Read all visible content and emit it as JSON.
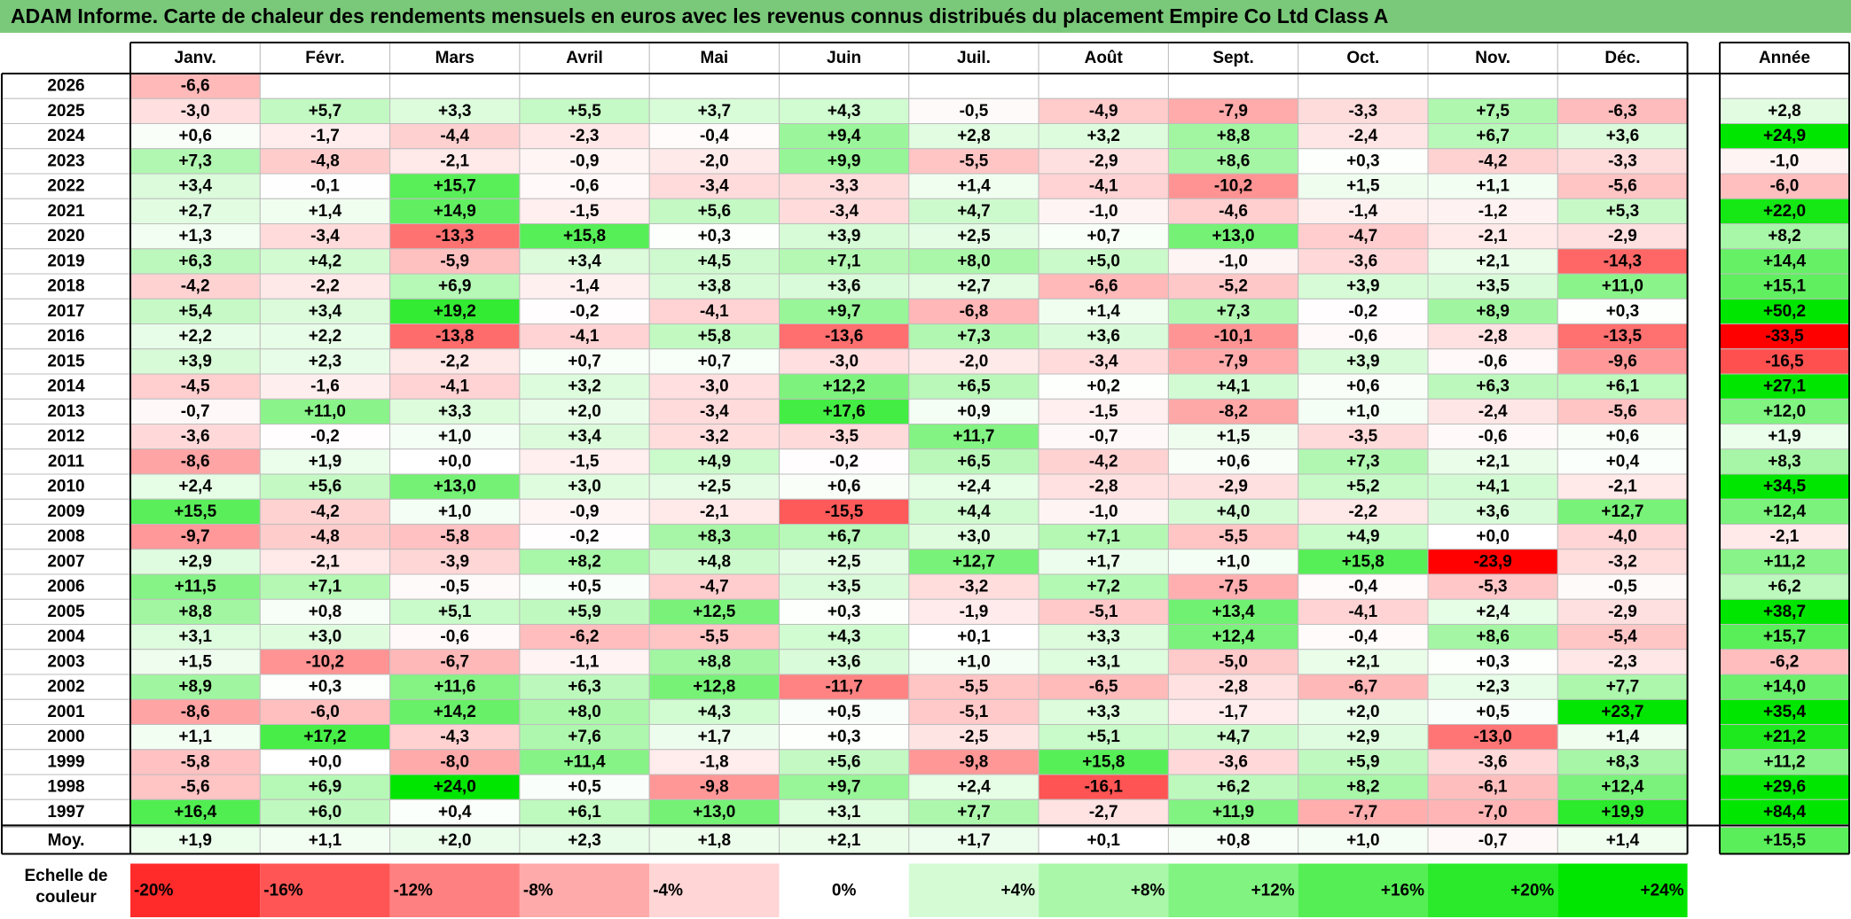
{
  "title": "ADAM Informe. Carte de chaleur des rendements mensuels en euros avec les revenus connus distribués du placement Empire Co Ltd Class A",
  "colors": {
    "title_bar": "#7ac97a",
    "negative_max": "#ff0000",
    "neutral": "#ffffff",
    "positive_max": "#00e600"
  },
  "chart_data": {
    "type": "heatmap",
    "title": "ADAM Informe. Carte de chaleur des rendements mensuels en euros avec les revenus connus distribués du placement Empire Co Ltd Class A",
    "months": [
      "Janv.",
      "Févr.",
      "Mars",
      "Avril",
      "Mai",
      "Juin",
      "Juil.",
      "Août",
      "Sept.",
      "Oct.",
      "Nov.",
      "Déc."
    ],
    "year_header": "Année",
    "rows": [
      {
        "year": "2026",
        "values": [
          "-6,6",
          "",
          "",
          "",
          "",
          "",
          "",
          "",
          "",
          "",
          "",
          ""
        ],
        "annual": ""
      },
      {
        "year": "2025",
        "values": [
          "-3,0",
          "+5,7",
          "+3,3",
          "+5,5",
          "+3,7",
          "+4,3",
          "-0,5",
          "-4,9",
          "-7,9",
          "-3,3",
          "+7,5",
          "-6,3"
        ],
        "annual": "+2,8"
      },
      {
        "year": "2024",
        "values": [
          "+0,6",
          "-1,7",
          "-4,4",
          "-2,3",
          "-0,4",
          "+9,4",
          "+2,8",
          "+3,2",
          "+8,8",
          "-2,4",
          "+6,7",
          "+3,6"
        ],
        "annual": "+24,9"
      },
      {
        "year": "2023",
        "values": [
          "+7,3",
          "-4,8",
          "-2,1",
          "-0,9",
          "-2,0",
          "+9,9",
          "-5,5",
          "-2,9",
          "+8,6",
          "+0,3",
          "-4,2",
          "-3,3"
        ],
        "annual": "-1,0"
      },
      {
        "year": "2022",
        "values": [
          "+3,4",
          "-0,1",
          "+15,7",
          "-0,6",
          "-3,4",
          "-3,3",
          "+1,4",
          "-4,1",
          "-10,2",
          "+1,5",
          "+1,1",
          "-5,6"
        ],
        "annual": "-6,0"
      },
      {
        "year": "2021",
        "values": [
          "+2,7",
          "+1,4",
          "+14,9",
          "-1,5",
          "+5,6",
          "-3,4",
          "+4,7",
          "-1,0",
          "-4,6",
          "-1,4",
          "-1,2",
          "+5,3"
        ],
        "annual": "+22,0"
      },
      {
        "year": "2020",
        "values": [
          "+1,3",
          "-3,4",
          "-13,3",
          "+15,8",
          "+0,3",
          "+3,9",
          "+2,5",
          "+0,7",
          "+13,0",
          "-4,7",
          "-2,1",
          "-2,9"
        ],
        "annual": "+8,2"
      },
      {
        "year": "2019",
        "values": [
          "+6,3",
          "+4,2",
          "-5,9",
          "+3,4",
          "+4,5",
          "+7,1",
          "+8,0",
          "+5,0",
          "-1,0",
          "-3,6",
          "+2,1",
          "-14,3"
        ],
        "annual": "+14,4"
      },
      {
        "year": "2018",
        "values": [
          "-4,2",
          "-2,2",
          "+6,9",
          "-1,4",
          "+3,8",
          "+3,6",
          "+2,7",
          "-6,6",
          "-5,2",
          "+3,9",
          "+3,5",
          "+11,0"
        ],
        "annual": "+15,1"
      },
      {
        "year": "2017",
        "values": [
          "+5,4",
          "+3,4",
          "+19,2",
          "-0,2",
          "-4,1",
          "+9,7",
          "-6,8",
          "+1,4",
          "+7,3",
          "-0,2",
          "+8,9",
          "+0,3"
        ],
        "annual": "+50,2"
      },
      {
        "year": "2016",
        "values": [
          "+2,2",
          "+2,2",
          "-13,8",
          "-4,1",
          "+5,8",
          "-13,6",
          "+7,3",
          "+3,6",
          "-10,1",
          "-0,6",
          "-2,8",
          "-13,5"
        ],
        "annual": "-33,5"
      },
      {
        "year": "2015",
        "values": [
          "+3,9",
          "+2,3",
          "-2,2",
          "+0,7",
          "+0,7",
          "-3,0",
          "-2,0",
          "-3,4",
          "-7,9",
          "+3,9",
          "-0,6",
          "-9,6"
        ],
        "annual": "-16,5"
      },
      {
        "year": "2014",
        "values": [
          "-4,5",
          "-1,6",
          "-4,1",
          "+3,2",
          "-3,0",
          "+12,2",
          "+6,5",
          "+0,2",
          "+4,1",
          "+0,6",
          "+6,3",
          "+6,1"
        ],
        "annual": "+27,1"
      },
      {
        "year": "2013",
        "values": [
          "-0,7",
          "+11,0",
          "+3,3",
          "+2,0",
          "-3,4",
          "+17,6",
          "+0,9",
          "-1,5",
          "-8,2",
          "+1,0",
          "-2,4",
          "-5,6"
        ],
        "annual": "+12,0"
      },
      {
        "year": "2012",
        "values": [
          "-3,6",
          "-0,2",
          "+1,0",
          "+3,4",
          "-3,2",
          "-3,5",
          "+11,7",
          "-0,7",
          "+1,5",
          "-3,5",
          "-0,6",
          "+0,6"
        ],
        "annual": "+1,9"
      },
      {
        "year": "2011",
        "values": [
          "-8,6",
          "+1,9",
          "+0,0",
          "-1,5",
          "+4,9",
          "-0,2",
          "+6,5",
          "-4,2",
          "+0,6",
          "+7,3",
          "+2,1",
          "+0,4"
        ],
        "annual": "+8,3"
      },
      {
        "year": "2010",
        "values": [
          "+2,4",
          "+5,6",
          "+13,0",
          "+3,0",
          "+2,5",
          "+0,6",
          "+2,4",
          "-2,8",
          "-2,9",
          "+5,2",
          "+4,1",
          "-2,1"
        ],
        "annual": "+34,5"
      },
      {
        "year": "2009",
        "values": [
          "+15,5",
          "-4,2",
          "+1,0",
          "-0,9",
          "-2,1",
          "-15,5",
          "+4,4",
          "-1,0",
          "+4,0",
          "-2,2",
          "+3,6",
          "+12,7"
        ],
        "annual": "+12,4"
      },
      {
        "year": "2008",
        "values": [
          "-9,7",
          "-4,8",
          "-5,8",
          "-0,2",
          "+8,3",
          "+6,7",
          "+3,0",
          "+7,1",
          "-5,5",
          "+4,9",
          "+0,0",
          "-4,0"
        ],
        "annual": "-2,1"
      },
      {
        "year": "2007",
        "values": [
          "+2,9",
          "-2,1",
          "-3,9",
          "+8,2",
          "+4,8",
          "+2,5",
          "+12,7",
          "+1,7",
          "+1,0",
          "+15,8",
          "-23,9",
          "-3,2"
        ],
        "annual": "+11,2"
      },
      {
        "year": "2006",
        "values": [
          "+11,5",
          "+7,1",
          "-0,5",
          "+0,5",
          "-4,7",
          "+3,5",
          "-3,2",
          "+7,2",
          "-7,5",
          "-0,4",
          "-5,3",
          "-0,5"
        ],
        "annual": "+6,2"
      },
      {
        "year": "2005",
        "values": [
          "+8,8",
          "+0,8",
          "+5,1",
          "+5,9",
          "+12,5",
          "+0,3",
          "-1,9",
          "-5,1",
          "+13,4",
          "-4,1",
          "+2,4",
          "-2,9"
        ],
        "annual": "+38,7"
      },
      {
        "year": "2004",
        "values": [
          "+3,1",
          "+3,0",
          "-0,6",
          "-6,2",
          "-5,5",
          "+4,3",
          "+0,1",
          "+3,3",
          "+12,4",
          "-0,4",
          "+8,6",
          "-5,4"
        ],
        "annual": "+15,7"
      },
      {
        "year": "2003",
        "values": [
          "+1,5",
          "-10,2",
          "-6,7",
          "-1,1",
          "+8,8",
          "+3,6",
          "+1,0",
          "+3,1",
          "-5,0",
          "+2,1",
          "+0,3",
          "-2,3"
        ],
        "annual": "-6,2"
      },
      {
        "year": "2002",
        "values": [
          "+8,9",
          "+0,3",
          "+11,6",
          "+6,3",
          "+12,8",
          "-11,7",
          "-5,5",
          "-6,5",
          "-2,8",
          "-6,7",
          "+2,3",
          "+7,7"
        ],
        "annual": "+14,0"
      },
      {
        "year": "2001",
        "values": [
          "-8,6",
          "-6,0",
          "+14,2",
          "+8,0",
          "+4,3",
          "+0,5",
          "-5,1",
          "+3,3",
          "-1,7",
          "+2,0",
          "+0,5",
          "+23,7"
        ],
        "annual": "+35,4"
      },
      {
        "year": "2000",
        "values": [
          "+1,1",
          "+17,2",
          "-4,3",
          "+7,6",
          "+1,7",
          "+0,3",
          "-2,5",
          "+5,1",
          "+4,7",
          "+2,9",
          "-13,0",
          "+1,4"
        ],
        "annual": "+21,2"
      },
      {
        "year": "1999",
        "values": [
          "-5,8",
          "+0,0",
          "-8,0",
          "+11,4",
          "-1,8",
          "+5,6",
          "-9,8",
          "+15,8",
          "-3,6",
          "+5,9",
          "-3,6",
          "+8,3"
        ],
        "annual": "+11,2"
      },
      {
        "year": "1998",
        "values": [
          "-5,6",
          "+6,9",
          "+24,0",
          "+0,5",
          "-9,8",
          "+9,7",
          "+2,4",
          "-16,1",
          "+6,2",
          "+8,2",
          "-6,1",
          "+12,4"
        ],
        "annual": "+29,6"
      },
      {
        "year": "1997",
        "values": [
          "+16,4",
          "+6,0",
          "+0,4",
          "+6,1",
          "+13,0",
          "+3,1",
          "+7,7",
          "-2,7",
          "+11,9",
          "-7,7",
          "-7,0",
          "+19,9"
        ],
        "annual": "+84,4"
      }
    ],
    "average_row": {
      "label": "Moy.",
      "values": [
        "+1,9",
        "+1,1",
        "+2,0",
        "+2,3",
        "+1,8",
        "+2,1",
        "+1,7",
        "+0,1",
        "+0,8",
        "+1,0",
        "-0,7",
        "+1,4"
      ],
      "annual": "+15,5"
    },
    "color_scale": {
      "label_line1": "Echelle de",
      "label_line2": "couleur",
      "stops": [
        "-20%",
        "-16%",
        "-12%",
        "-8%",
        "-4%",
        "0%",
        "+4%",
        "+8%",
        "+12%",
        "+16%",
        "+20%",
        "+24%"
      ],
      "stop_values": [
        -20,
        -16,
        -12,
        -8,
        -4,
        0,
        4,
        8,
        12,
        16,
        20,
        24
      ]
    },
    "color_range": {
      "min": -24,
      "max": 24
    }
  }
}
